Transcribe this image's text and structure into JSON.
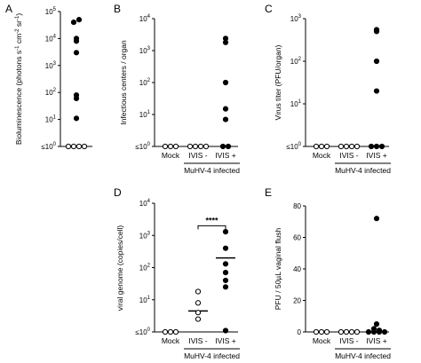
{
  "chart_data": [
    {
      "panel": "A",
      "type": "scatter",
      "ylabel": "Bioluminescence (photons s-1 cm-2 sr-1)",
      "ylabel_parts": [
        "Bioluminescence (photons s",
        "-1",
        " cm",
        "-2",
        " sr",
        "-1",
        ")"
      ],
      "yscale": "log",
      "ylim": [
        1,
        100000
      ],
      "yticks": [
        {
          "label": "≤10",
          "sup": "0"
        },
        {
          "label": "10",
          "sup": "1"
        },
        {
          "label": "10",
          "sup": "2"
        },
        {
          "label": "10",
          "sup": "3"
        },
        {
          "label": "10",
          "sup": "4"
        },
        {
          "label": "10",
          "sup": "5"
        }
      ],
      "categories": [
        ""
      ],
      "points": [
        {
          "cat": 0,
          "y": 8000,
          "filled": true
        },
        {
          "cat": 0,
          "y": 40000,
          "filled": true
        },
        {
          "cat": 0,
          "y": 50000,
          "filled": true
        },
        {
          "cat": 0,
          "y": 10000,
          "filled": true
        },
        {
          "cat": 0,
          "y": 3000,
          "filled": true
        },
        {
          "cat": 0,
          "y": 80,
          "filled": true
        },
        {
          "cat": 0,
          "y": 60,
          "filled": true
        },
        {
          "cat": 0,
          "y": 11,
          "filled": true
        },
        {
          "cat": 0,
          "y": 1,
          "filled": false
        },
        {
          "cat": 0,
          "y": 1,
          "filled": false
        },
        {
          "cat": 0,
          "y": 1,
          "filled": false
        },
        {
          "cat": 0,
          "y": 1,
          "filled": false
        }
      ],
      "group": null
    },
    {
      "panel": "B",
      "type": "scatter",
      "ylabel": "Infectious centers / organ",
      "yscale": "log",
      "ylim": [
        1,
        10000
      ],
      "yticks": [
        {
          "label": "≤10",
          "sup": "0"
        },
        {
          "label": "10",
          "sup": "1"
        },
        {
          "label": "10",
          "sup": "2"
        },
        {
          "label": "10",
          "sup": "3"
        },
        {
          "label": "10",
          "sup": "4"
        }
      ],
      "categories": [
        "Mock",
        "IVIS -",
        "IVIS +"
      ],
      "points": [
        {
          "cat": 0,
          "y": 1,
          "filled": false
        },
        {
          "cat": 0,
          "y": 1,
          "filled": false
        },
        {
          "cat": 0,
          "y": 1,
          "filled": false
        },
        {
          "cat": 1,
          "y": 1,
          "filled": false
        },
        {
          "cat": 1,
          "y": 1,
          "filled": false
        },
        {
          "cat": 1,
          "y": 1,
          "filled": false
        },
        {
          "cat": 1,
          "y": 1,
          "filled": false
        },
        {
          "cat": 2,
          "y": 2400,
          "filled": true
        },
        {
          "cat": 2,
          "y": 1800,
          "filled": true
        },
        {
          "cat": 2,
          "y": 100,
          "filled": true
        },
        {
          "cat": 2,
          "y": 15,
          "filled": true
        },
        {
          "cat": 2,
          "y": 7,
          "filled": true
        },
        {
          "cat": 2,
          "y": 1,
          "filled": true
        },
        {
          "cat": 2,
          "y": 1,
          "filled": true
        }
      ],
      "group": {
        "label": "MuHV-4 infected",
        "from": 1,
        "to": 2
      }
    },
    {
      "panel": "C",
      "type": "scatter",
      "ylabel": "Virus titer (PFU/organ)",
      "yscale": "log",
      "ylim": [
        1,
        1000
      ],
      "yticks": [
        {
          "label": "≤10",
          "sup": "0"
        },
        {
          "label": "10",
          "sup": "1"
        },
        {
          "label": "10",
          "sup": "2"
        },
        {
          "label": "10",
          "sup": "3"
        }
      ],
      "categories": [
        "Mock",
        "IVIS -",
        "IVIS +"
      ],
      "points": [
        {
          "cat": 0,
          "y": 1,
          "filled": false
        },
        {
          "cat": 0,
          "y": 1,
          "filled": false
        },
        {
          "cat": 0,
          "y": 1,
          "filled": false
        },
        {
          "cat": 1,
          "y": 1,
          "filled": false
        },
        {
          "cat": 1,
          "y": 1,
          "filled": false
        },
        {
          "cat": 1,
          "y": 1,
          "filled": false
        },
        {
          "cat": 1,
          "y": 1,
          "filled": false
        },
        {
          "cat": 2,
          "y": 500,
          "filled": true
        },
        {
          "cat": 2,
          "y": 550,
          "filled": true
        },
        {
          "cat": 2,
          "y": 100,
          "filled": true
        },
        {
          "cat": 2,
          "y": 20,
          "filled": true
        },
        {
          "cat": 2,
          "y": 1,
          "filled": true
        },
        {
          "cat": 2,
          "y": 1,
          "filled": true
        },
        {
          "cat": 2,
          "y": 1,
          "filled": true
        }
      ],
      "group": {
        "label": "MuHV-4 infected",
        "from": 1,
        "to": 2
      }
    },
    {
      "panel": "D",
      "type": "scatter",
      "ylabel": "viral genome (copies/cell)",
      "yscale": "log",
      "ylim": [
        1,
        10000
      ],
      "yticks": [
        {
          "label": "≤10",
          "sup": "0"
        },
        {
          "label": "10",
          "sup": "1"
        },
        {
          "label": "10",
          "sup": "2"
        },
        {
          "label": "10",
          "sup": "3"
        },
        {
          "label": "10",
          "sup": "4"
        }
      ],
      "categories": [
        "Mock",
        "IVIS -",
        "IVIS +"
      ],
      "points": [
        {
          "cat": 0,
          "y": 1,
          "filled": false
        },
        {
          "cat": 0,
          "y": 1,
          "filled": false
        },
        {
          "cat": 0,
          "y": 1,
          "filled": false
        },
        {
          "cat": 1,
          "y": 18,
          "filled": false
        },
        {
          "cat": 1,
          "y": 8,
          "filled": false
        },
        {
          "cat": 1,
          "y": 4,
          "filled": false
        },
        {
          "cat": 1,
          "y": 2.5,
          "filled": false
        },
        {
          "cat": 2,
          "y": 1300,
          "filled": true
        },
        {
          "cat": 2,
          "y": 400,
          "filled": true
        },
        {
          "cat": 2,
          "y": 130,
          "filled": true
        },
        {
          "cat": 2,
          "y": 70,
          "filled": true
        },
        {
          "cat": 2,
          "y": 40,
          "filled": true
        },
        {
          "cat": 2,
          "y": 25,
          "filled": true
        },
        {
          "cat": 2,
          "y": 1.1,
          "filled": true
        }
      ],
      "means": [
        {
          "cat": 1,
          "y": 4.5
        },
        {
          "cat": 2,
          "y": 200
        }
      ],
      "significance": {
        "label": "****",
        "from": 1,
        "to": 2,
        "y": 2000
      },
      "group": {
        "label": "MuHV-4 infected",
        "from": 1,
        "to": 2
      }
    },
    {
      "panel": "E",
      "type": "scatter",
      "ylabel": "PFU / 50µL vaginal flush",
      "yscale": "linear",
      "ylim": [
        0,
        80
      ],
      "yticks": [
        {
          "label": "0",
          "sup": ""
        },
        {
          "label": "20",
          "sup": ""
        },
        {
          "label": "40",
          "sup": ""
        },
        {
          "label": "60",
          "sup": ""
        },
        {
          "label": "80",
          "sup": ""
        }
      ],
      "categories": [
        "Mock",
        "IVIS -",
        "IVIS +"
      ],
      "points": [
        {
          "cat": 0,
          "y": 0,
          "filled": false
        },
        {
          "cat": 0,
          "y": 0,
          "filled": false
        },
        {
          "cat": 0,
          "y": 0,
          "filled": false
        },
        {
          "cat": 1,
          "y": 0,
          "filled": false
        },
        {
          "cat": 1,
          "y": 0,
          "filled": false
        },
        {
          "cat": 1,
          "y": 0,
          "filled": false
        },
        {
          "cat": 1,
          "y": 0,
          "filled": false
        },
        {
          "cat": 2,
          "y": 72,
          "filled": true
        },
        {
          "cat": 2,
          "y": 5,
          "filled": true
        },
        {
          "cat": 2,
          "y": 2,
          "filled": true
        },
        {
          "cat": 2,
          "y": 1,
          "filled": true
        },
        {
          "cat": 2,
          "y": 0,
          "filled": true
        },
        {
          "cat": 2,
          "y": 0,
          "filled": true
        },
        {
          "cat": 2,
          "y": 0,
          "filled": true
        },
        {
          "cat": 2,
          "y": 0,
          "filled": true
        }
      ],
      "group": {
        "label": "MuHV-4 infected",
        "from": 1,
        "to": 2
      }
    }
  ]
}
